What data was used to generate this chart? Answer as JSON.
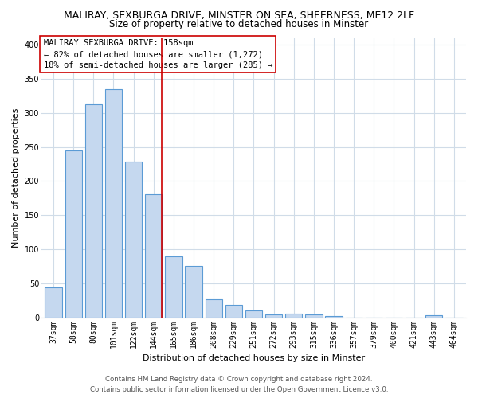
{
  "title_line1": "MALIRAY, SEXBURGA DRIVE, MINSTER ON SEA, SHEERNESS, ME12 2LF",
  "title_line2": "Size of property relative to detached houses in Minster",
  "xlabel": "Distribution of detached houses by size in Minster",
  "ylabel": "Number of detached properties",
  "categories": [
    "37sqm",
    "58sqm",
    "80sqm",
    "101sqm",
    "122sqm",
    "144sqm",
    "165sqm",
    "186sqm",
    "208sqm",
    "229sqm",
    "251sqm",
    "272sqm",
    "293sqm",
    "315sqm",
    "336sqm",
    "357sqm",
    "379sqm",
    "400sqm",
    "421sqm",
    "443sqm",
    "464sqm"
  ],
  "values": [
    44,
    245,
    312,
    335,
    228,
    180,
    90,
    75,
    27,
    18,
    10,
    4,
    6,
    4,
    2,
    0,
    0,
    0,
    0,
    3,
    0
  ],
  "bar_color": "#c5d8ef",
  "bar_edge_color": "#5b9bd5",
  "marker_bar_index": 5,
  "marker_color": "#cc0000",
  "annotation_title": "MALIRAY SEXBURGA DRIVE: 158sqm",
  "annotation_line2": "← 82% of detached houses are smaller (1,272)",
  "annotation_line3": "18% of semi-detached houses are larger (285) →",
  "annotation_box_color": "#cc0000",
  "ylim": [
    0,
    410
  ],
  "yticks": [
    0,
    50,
    100,
    150,
    200,
    250,
    300,
    350,
    400
  ],
  "plot_bg_color": "#ffffff",
  "fig_bg_color": "#ffffff",
  "grid_color": "#d0dce8",
  "title_fontsize": 9.0,
  "subtitle_fontsize": 8.5,
  "axis_label_fontsize": 8.0,
  "tick_fontsize": 7.0,
  "annotation_fontsize": 7.5,
  "footer_fontsize": 6.2,
  "footer_color": "#555555",
  "footer_line1": "Contains HM Land Registry data © Crown copyright and database right 2024.",
  "footer_line2": "Contains public sector information licensed under the Open Government Licence v3.0."
}
